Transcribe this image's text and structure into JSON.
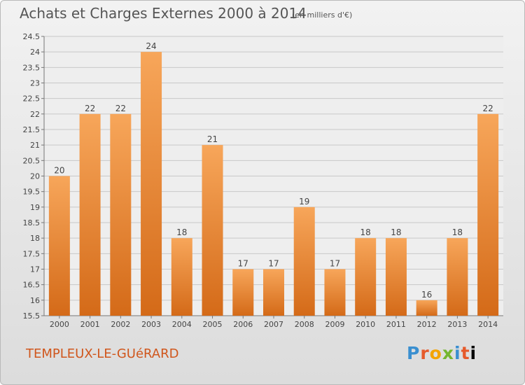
{
  "header": {
    "title": "Achats et Charges Externes 2000 à 2014",
    "subtitle": "(en milliers d'€)"
  },
  "footer": {
    "place": "TEMPLEUX-LE-GUéRARD",
    "brand": "Proxiti"
  },
  "colors": {
    "bar_light": "#f7a65a",
    "bar_dark": "#d46a18",
    "grid": "#c8c8c8",
    "place_text": "#d0561c"
  },
  "chart_data": {
    "type": "bar",
    "title": "Achats et Charges Externes 2000 à 2014",
    "subtitle": "(en milliers d'€)",
    "categories": [
      "2000",
      "2001",
      "2002",
      "2003",
      "2004",
      "2005",
      "2006",
      "2007",
      "2008",
      "2009",
      "2010",
      "2011",
      "2012",
      "2013",
      "2014"
    ],
    "values": [
      20,
      22,
      22,
      24,
      18,
      21,
      17,
      17,
      19,
      17,
      18,
      18,
      16,
      18,
      22
    ],
    "data_labels": [
      "20",
      "22",
      "22",
      "24",
      "18",
      "21",
      "17",
      "17",
      "19",
      "17",
      "18",
      "18",
      "16",
      "18",
      "22"
    ],
    "ylim": [
      15.5,
      24.5
    ],
    "yticks": [
      "15.5",
      "16",
      "16.5",
      "17",
      "17.5",
      "18",
      "18.5",
      "19",
      "19.5",
      "20",
      "20.5",
      "21",
      "21.5",
      "22",
      "22.5",
      "23",
      "23.5",
      "24",
      "24.5"
    ],
    "grid": true,
    "xlabel": "",
    "ylabel": ""
  }
}
